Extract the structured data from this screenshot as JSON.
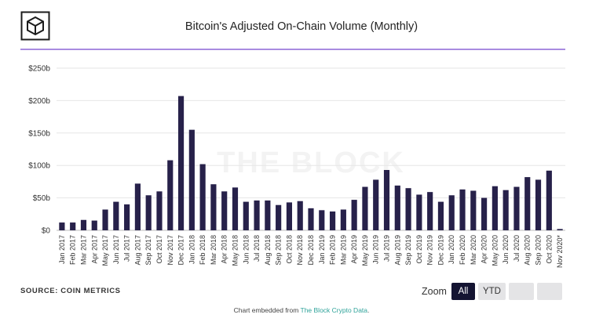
{
  "logo_icon": "the-block-cube-logo",
  "chart_data": {
    "type": "bar",
    "title": "Bitcoin's Adjusted On-Chain Volume (Monthly)",
    "watermark": "THE BLOCK",
    "xlabel": "",
    "ylabel": "",
    "ylim": [
      0,
      250
    ],
    "y_ticks": [
      "$0",
      "$50b",
      "$100b",
      "$150b",
      "$200b",
      "$250b"
    ],
    "bar_color": "#27214a",
    "grid_color": "#e6e6e6",
    "categories": [
      "Jan 2017",
      "Feb 2017",
      "Mar 2017",
      "Apr 2017",
      "May 2017",
      "Jun 2017",
      "Jul 2017",
      "Aug 2017",
      "Sep 2017",
      "Oct 2017",
      "Nov 2017",
      "Dec 2017",
      "Jan 2018",
      "Feb 2018",
      "Mar 2018",
      "Apr 2018",
      "May 2018",
      "Jun 2018",
      "Jul 2018",
      "Aug 2018",
      "Sep 2018",
      "Oct 2018",
      "Nov 2018",
      "Dec 2018",
      "Jan 2019",
      "Feb 2019",
      "Mar 2019",
      "Apr 2019",
      "May 2019",
      "Jun 2019",
      "Jul 2019",
      "Aug 2019",
      "Sep 2019",
      "Oct 2019",
      "Nov 2019",
      "Dec 2019",
      "Jan 2020",
      "Feb 2020",
      "Mar 2020",
      "Apr 2020",
      "May 2020",
      "Jun 2020",
      "Jul 2020",
      "Aug 2020",
      "Sep 2020",
      "Oct 2020",
      "Nov 2020*"
    ],
    "values": [
      12,
      12,
      16,
      15,
      32,
      44,
      40,
      72,
      54,
      60,
      108,
      207,
      155,
      102,
      71,
      60,
      66,
      44,
      46,
      46,
      39,
      43,
      45,
      34,
      31,
      29,
      32,
      47,
      67,
      78,
      93,
      69,
      65,
      55,
      59,
      44,
      54,
      63,
      61,
      50,
      68,
      62,
      67,
      82,
      78,
      92,
      2
    ]
  },
  "source": "SOURCE: COIN METRICS",
  "zoom": {
    "label": "Zoom",
    "all": "All",
    "ytd": "YTD"
  },
  "embed": {
    "prefix": "Chart embedded from ",
    "link": "The Block Crypto Data",
    "suffix": "."
  }
}
